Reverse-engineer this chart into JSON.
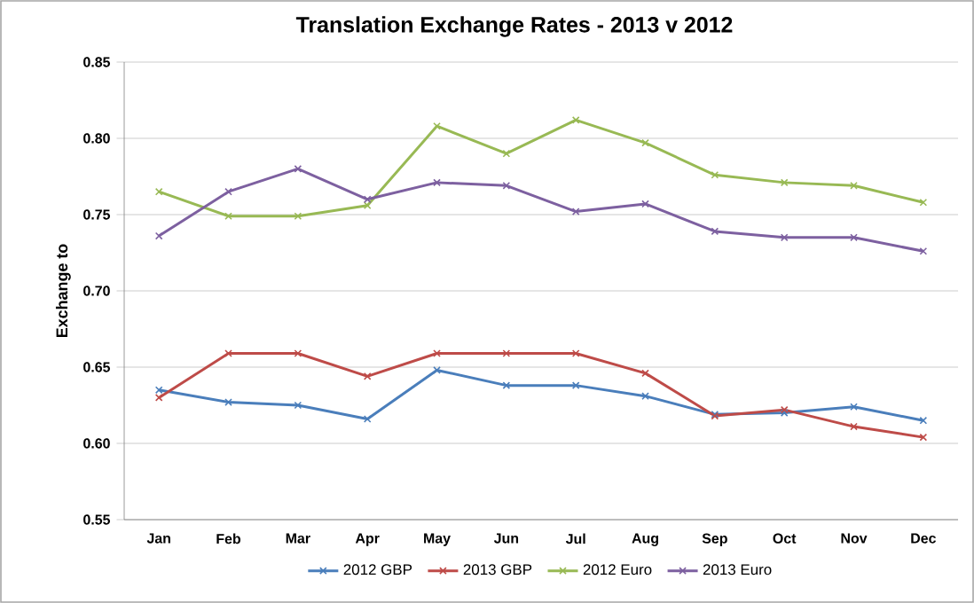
{
  "chart_data": {
    "type": "line",
    "title": "Translation Exchange Rates - 2013 v 2012",
    "ylabel": "Exchange to",
    "categories": [
      "Jan",
      "Feb",
      "Mar",
      "Apr",
      "May",
      "Jun",
      "Jul",
      "Aug",
      "Sep",
      "Oct",
      "Nov",
      "Dec"
    ],
    "series": [
      {
        "name": "2012 GBP",
        "color": "#4a7ebb",
        "values": [
          0.635,
          0.627,
          0.625,
          0.616,
          0.648,
          0.638,
          0.638,
          0.631,
          0.619,
          0.62,
          0.624,
          0.615
        ]
      },
      {
        "name": "2013 GBP",
        "color": "#be4b48",
        "values": [
          0.63,
          0.659,
          0.659,
          0.644,
          0.659,
          0.659,
          0.659,
          0.646,
          0.618,
          0.622,
          0.611,
          0.604
        ]
      },
      {
        "name": "2012 Euro",
        "color": "#98b954",
        "values": [
          0.765,
          0.749,
          0.749,
          0.756,
          0.808,
          0.79,
          0.812,
          0.797,
          0.776,
          0.771,
          0.769,
          0.758
        ]
      },
      {
        "name": "2013 Euro",
        "color": "#7d60a0",
        "values": [
          0.736,
          0.765,
          0.78,
          0.76,
          0.771,
          0.769,
          0.752,
          0.757,
          0.739,
          0.735,
          0.735,
          0.726
        ]
      }
    ],
    "ylim": [
      0.55,
      0.85
    ],
    "yticks": [
      {
        "value": 0.55,
        "label": "0.55"
      },
      {
        "value": 0.6,
        "label": "0.60"
      },
      {
        "value": 0.65,
        "label": "0.65"
      },
      {
        "value": 0.7,
        "label": "0.70"
      },
      {
        "value": 0.75,
        "label": "0.75"
      },
      {
        "value": 0.8,
        "label": "0.80"
      },
      {
        "value": 0.85,
        "label": "0.85"
      }
    ],
    "grid": "y",
    "legend": "bottom",
    "marker": "cross",
    "line_style": "solid"
  }
}
